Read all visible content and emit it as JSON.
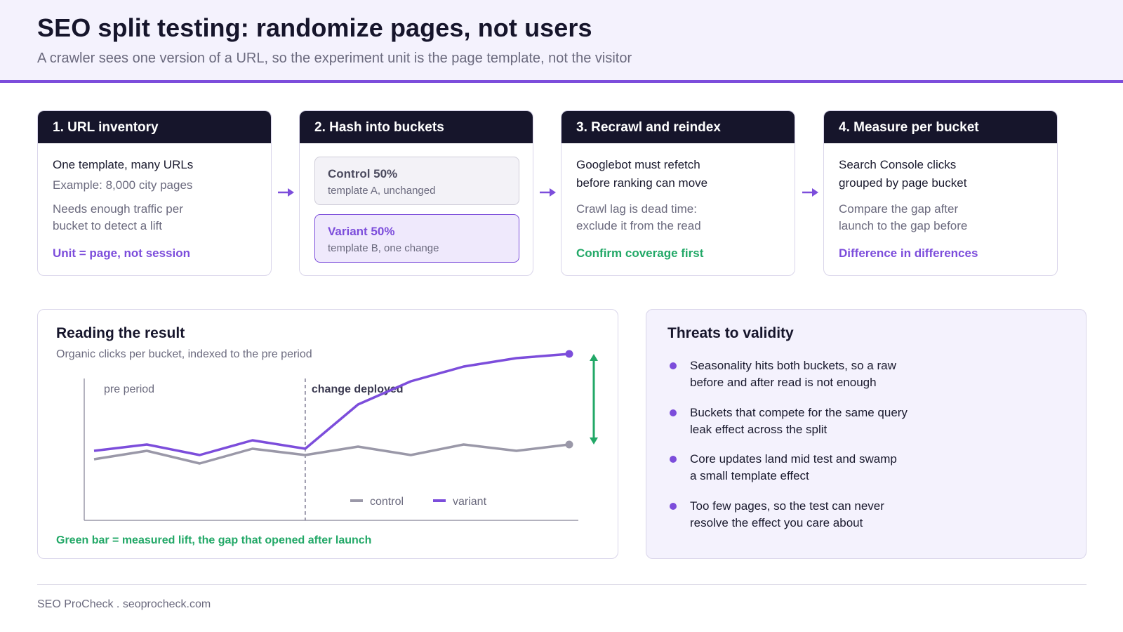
{
  "header": {
    "title": "SEO split testing: randomize pages, not users",
    "subtitle": "A crawler sees one version of a URL, so the experiment unit is the page template, not the visitor"
  },
  "steps": [
    {
      "title": "1. URL inventory",
      "line1": "One template, many URLs",
      "line2": "Example: 8,000 city pages",
      "note": [
        "Needs enough traffic per",
        "bucket to detect a lift"
      ],
      "callout": "Unit = page, not session"
    },
    {
      "title": "2. Hash into buckets",
      "control": {
        "label": "Control 50%",
        "detail": "template A, unchanged"
      },
      "variant": {
        "label": "Variant 50%",
        "detail": "template B, one change"
      }
    },
    {
      "title": "3. Recrawl and reindex",
      "line1": [
        "Googlebot must refetch",
        "before ranking can move"
      ],
      "note": [
        "Crawl lag is dead time:",
        "exclude it from the read"
      ],
      "callout": "Confirm coverage first"
    },
    {
      "title": "4. Measure per bucket",
      "line1": [
        "Search Console clicks",
        "grouped by page bucket"
      ],
      "note": [
        "Compare the gap after",
        "launch to the gap before"
      ],
      "callout": "Difference in differences"
    }
  ],
  "reading": {
    "title": "Reading the result",
    "subtitle": "Organic clicks per bucket, indexed to the pre period",
    "caption": "Green bar = measured lift, the gap that opened after launch"
  },
  "chart_data": {
    "type": "line",
    "x": [
      0,
      1,
      2,
      3,
      4,
      5,
      6,
      7,
      8,
      9
    ],
    "ylim": [
      0,
      100
    ],
    "series": [
      {
        "name": "control",
        "color": "#9a98a8",
        "values": [
          29,
          33,
          27,
          34,
          31,
          35,
          31,
          36,
          33,
          36
        ]
      },
      {
        "name": "variant",
        "color": "#7c4ddb",
        "values": [
          33,
          36,
          31,
          38,
          34,
          55,
          66,
          73,
          77,
          79
        ]
      }
    ],
    "annotations": {
      "pre_period": "pre period",
      "change_deployed": "change deployed",
      "change_index": 4
    },
    "legend_position": "bottom-center",
    "grid": false,
    "lift_color": "#22a867"
  },
  "threats": {
    "title": "Threats to validity",
    "items": [
      [
        "Seasonality hits both buckets, so a raw",
        "before and after read is not enough"
      ],
      [
        "Buckets that compete for the same query",
        "leak effect across the split"
      ],
      [
        "Core updates land mid test and swamp",
        "a small template effect"
      ],
      [
        "Too few pages, so the test can never",
        "resolve the effect you care about"
      ]
    ]
  },
  "footer": "SEO ProCheck . seoprocheck.com"
}
